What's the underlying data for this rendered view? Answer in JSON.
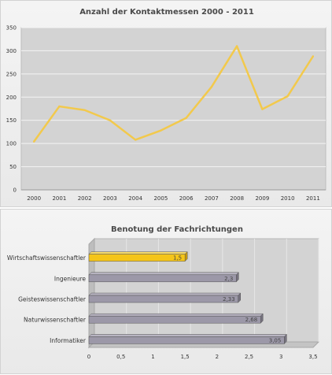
{
  "chart_data": [
    {
      "type": "line",
      "title": "Anzahl der Kontaktmessen 2000 - 2011",
      "x": [
        "2000",
        "2001",
        "2002",
        "2003",
        "2004",
        "2005",
        "2006",
        "2007",
        "2008",
        "2009",
        "2010",
        "2011"
      ],
      "series": [
        {
          "values": [
            104,
            180,
            172,
            150,
            108,
            128,
            155,
            222,
            310,
            174,
            202,
            288
          ]
        }
      ],
      "ylim": [
        0,
        350
      ],
      "yticks": [
        "0",
        "50",
        "100",
        "150",
        "200",
        "250",
        "300",
        "350"
      ],
      "grid": true,
      "colors": {
        "line": "#f2c94c",
        "plot_bg": "#d3d3d3",
        "grid": "#f4f4f4"
      }
    },
    {
      "type": "bar",
      "orientation": "horizontal",
      "title": "Benotung der Fachrichtungen",
      "categories": [
        "Wirtschaftswissenschaftler",
        "Ingenieure",
        "Geisteswissenschaftler",
        "Naturwissenschaftler",
        "Informatiker"
      ],
      "values": [
        1.5,
        2.3,
        2.33,
        2.68,
        3.05
      ],
      "value_labels": [
        "1,5",
        "2,3",
        "2,33",
        "2,68",
        "3,05"
      ],
      "xlim": [
        0,
        3.5
      ],
      "xticks": [
        "0",
        "0,5",
        "1",
        "1,5",
        "2",
        "2,5",
        "3",
        "3,5"
      ],
      "grid": true,
      "colors": {
        "highlight_bar": "#f5c518",
        "bar": "#9c98a8",
        "plot_bg": "#d3d3d3"
      }
    }
  ]
}
